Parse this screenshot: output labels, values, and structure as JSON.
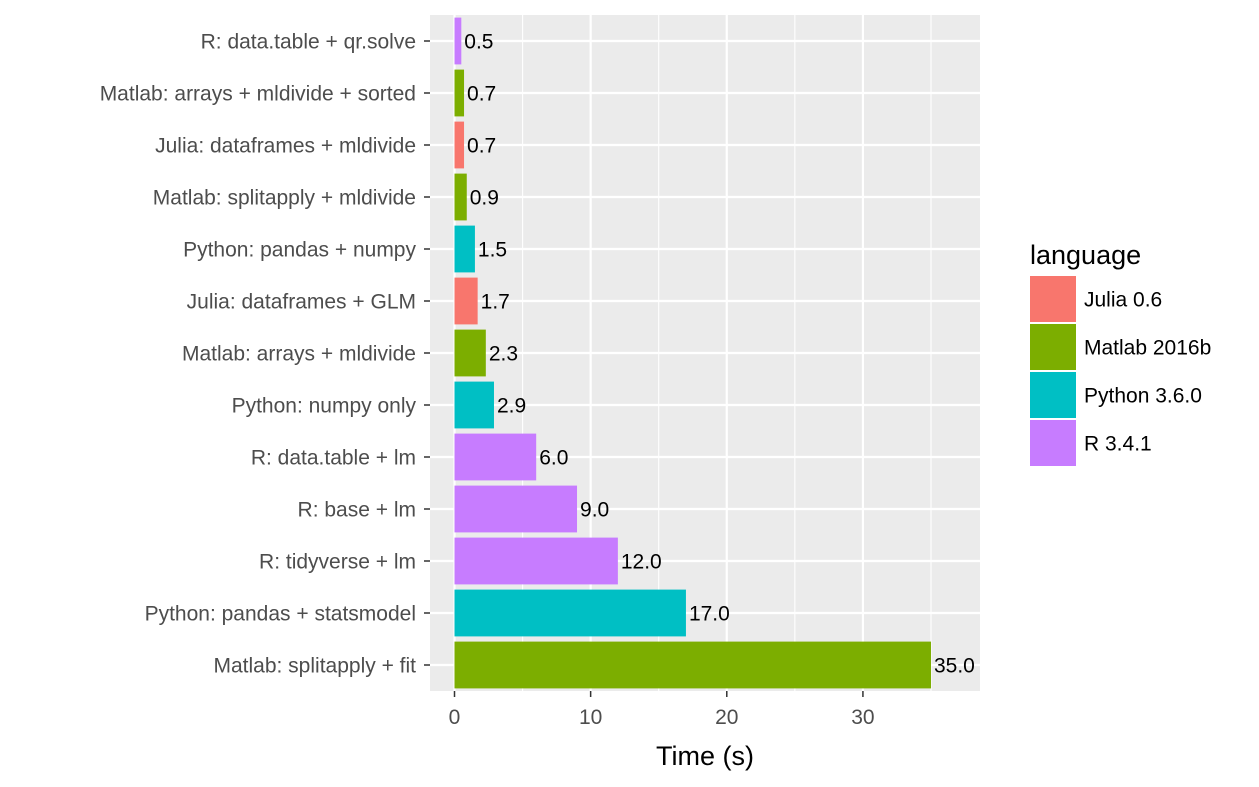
{
  "chart_data": {
    "type": "bar",
    "orientation": "horizontal",
    "title": "",
    "xlabel": "Time (s)",
    "ylabel": "",
    "xlim": [
      -1.8,
      38.6
    ],
    "xticks": [
      0,
      10,
      20,
      30
    ],
    "grid": true,
    "legend": {
      "title": "language",
      "placement": "right",
      "entries": [
        {
          "name": "Julia 0.6",
          "color": "#F8766D"
        },
        {
          "name": "Matlab 2016b",
          "color": "#7CAE00"
        },
        {
          "name": "Python 3.6.0",
          "color": "#00BFC4"
        },
        {
          "name": "R 3.4.1",
          "color": "#C77CFF"
        }
      ]
    },
    "categories": [
      "R: data.table + qr.solve",
      "Matlab: arrays + mldivide + sorted",
      "Julia: dataframes + mldivide",
      "Matlab: splitapply + mldivide",
      "Python: pandas + numpy",
      "Julia: dataframes + GLM",
      "Matlab: arrays + mldivide",
      "Python: numpy only",
      "R: data.table + lm",
      "R: base + lm",
      "R: tidyverse + lm",
      "Python: pandas + statsmodel",
      "Matlab: splitapply + fit"
    ],
    "values": [
      0.5,
      0.7,
      0.7,
      0.9,
      1.5,
      1.7,
      2.3,
      2.9,
      6.0,
      9.0,
      12.0,
      17.0,
      35.0
    ],
    "labels": [
      "0.5",
      "0.7",
      "0.7",
      "0.9",
      "1.5",
      "1.7",
      "2.3",
      "2.9",
      "6.0",
      "9.0",
      "12.0",
      "17.0",
      "35.0"
    ],
    "language": [
      "R 3.4.1",
      "Matlab 2016b",
      "Julia 0.6",
      "Matlab 2016b",
      "Python 3.6.0",
      "Julia 0.6",
      "Matlab 2016b",
      "Python 3.6.0",
      "R 3.4.1",
      "R 3.4.1",
      "R 3.4.1",
      "Python 3.6.0",
      "Matlab 2016b"
    ]
  }
}
